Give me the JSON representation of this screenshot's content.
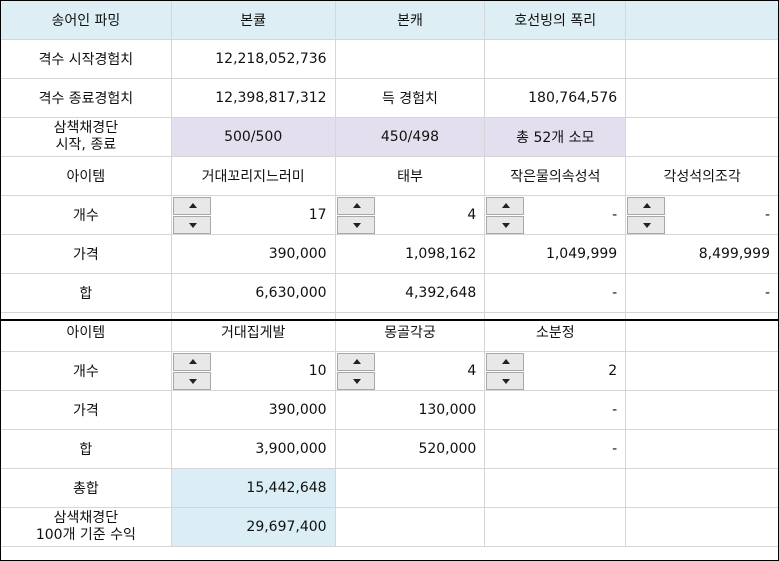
{
  "header": {
    "col1": "송어인 파밍",
    "col2": "본큘",
    "col3": "본캐",
    "col4": "호선빙의 폭리",
    "col5": ""
  },
  "exp": {
    "start_label": "격수 시작경험치",
    "start_value": "12,218,052,736",
    "end_label": "격수 종료경험치",
    "end_value": "12,398,817,312",
    "gain_label": "득 경험치",
    "gain_value": "180,764,576"
  },
  "samsaek": {
    "label_line1": "삼책채경단",
    "label_line2": "시작, 종료",
    "v1": "500/500",
    "v2": "450/498",
    "v3": "총 52개 소모"
  },
  "section1": {
    "item_label": "아이템",
    "items": [
      "거대꼬리지느러미",
      "태부",
      "작은물의속성석",
      "각성석의조각"
    ],
    "count_label": "개수",
    "counts": [
      "17",
      "4",
      "-",
      "-"
    ],
    "price_label": "가격",
    "prices": [
      "390,000",
      "1,098,162",
      "1,049,999",
      "8,499,999"
    ],
    "sum_label": "합",
    "sums": [
      "6,630,000",
      "4,392,648",
      "-",
      "-"
    ]
  },
  "section2": {
    "item_label": "아이템",
    "items": [
      "거대집게발",
      "몽골각궁",
      "소분정"
    ],
    "count_label": "개수",
    "counts": [
      "10",
      "4",
      "2"
    ],
    "price_label": "가격",
    "prices": [
      "390,000",
      "130,000",
      "-"
    ],
    "sum_label": "합",
    "sums": [
      "3,900,000",
      "520,000",
      "-"
    ]
  },
  "totals": {
    "total_label": "총합",
    "total_value": "15,442,648",
    "profit_label_line1": "삼색채경단",
    "profit_label_line2": "100개 기준 수익",
    "profit_value": "29,697,400"
  },
  "colors": {
    "header_bg": "#ddeff5",
    "purple_bg": "#e4dfee",
    "blue_bg": "#dbeef5"
  }
}
